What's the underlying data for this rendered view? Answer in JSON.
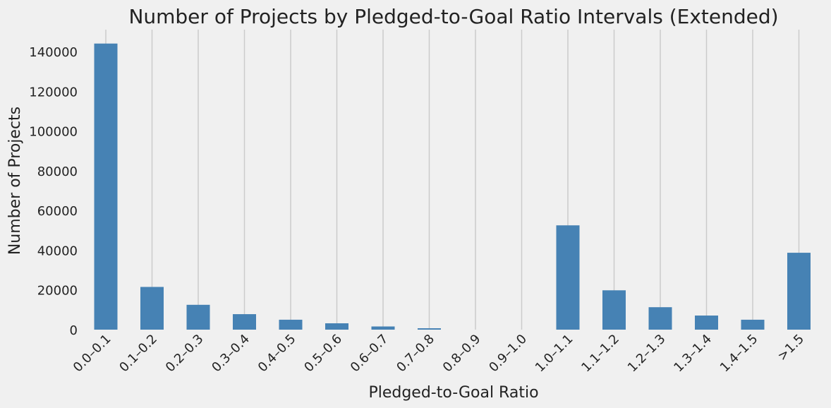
{
  "chart_data": {
    "type": "bar",
    "title": "Number of Projects by Pledged-to-Goal Ratio Intervals (Extended)",
    "xlabel": "Pledged-to-Goal Ratio",
    "ylabel": "Number of Projects",
    "categories": [
      "0.0–0.1",
      "0.1–0.2",
      "0.2–0.3",
      "0.3–0.4",
      "0.4–0.5",
      "0.5–0.6",
      "0.6–0.7",
      "0.7–0.8",
      "0.8–0.9",
      "0.9–1.0",
      "1.0–1.1",
      "1.1–1.2",
      "1.2–1.3",
      "1.3–1.4",
      "1.4–1.5",
      ">1.5"
    ],
    "values": [
      144000,
      21500,
      12500,
      7800,
      5000,
      3200,
      1600,
      700,
      0,
      0,
      52500,
      19800,
      11300,
      7100,
      5000,
      38700
    ],
    "yticks": [
      0,
      20000,
      40000,
      60000,
      80000,
      100000,
      120000,
      140000
    ],
    "ylim": [
      0,
      151000
    ],
    "grid": "vertical",
    "color": "#4682b4",
    "background": "#f0f0f0"
  }
}
